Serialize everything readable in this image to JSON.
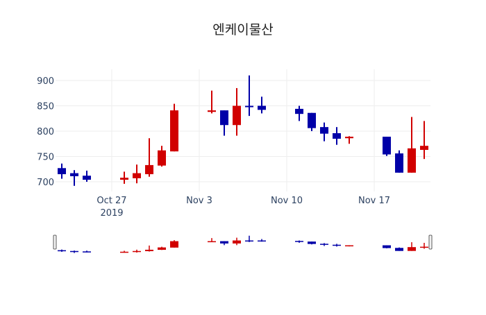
{
  "chart_data": {
    "type": "candlestick",
    "title": "엔케이물산",
    "increasing_color": "#d10000",
    "decreasing_color": "#0000a8",
    "ylim": [
      680,
      925
    ],
    "yticks": [
      700,
      750,
      800,
      850,
      900
    ],
    "xticks": [
      {
        "date": "2019-10-27",
        "label": "Oct 27",
        "sub": "2019"
      },
      {
        "date": "2019-11-03",
        "label": "Nov 3"
      },
      {
        "date": "2019-11-10",
        "label": "Nov 10"
      },
      {
        "date": "2019-11-17",
        "label": "Nov 17"
      }
    ],
    "x_start": "2019-10-22",
    "x_end": "2019-11-21",
    "candles": [
      {
        "date": "2019-10-23",
        "open": 727,
        "high": 736,
        "low": 706,
        "close": 715
      },
      {
        "date": "2019-10-24",
        "open": 717,
        "high": 723,
        "low": 692,
        "close": 711
      },
      {
        "date": "2019-10-25",
        "open": 712,
        "high": 722,
        "low": 700,
        "close": 704
      },
      {
        "date": "2019-10-28",
        "open": 704,
        "high": 720,
        "low": 696,
        "close": 708
      },
      {
        "date": "2019-10-29",
        "open": 707,
        "high": 734,
        "low": 697,
        "close": 717
      },
      {
        "date": "2019-10-30",
        "open": 715,
        "high": 786,
        "low": 710,
        "close": 733
      },
      {
        "date": "2019-10-31",
        "open": 732,
        "high": 771,
        "low": 730,
        "close": 762
      },
      {
        "date": "2019-11-01",
        "open": 760,
        "high": 854,
        "low": 760,
        "close": 841
      },
      {
        "date": "2019-11-04",
        "open": 838,
        "high": 880,
        "low": 835,
        "close": 841
      },
      {
        "date": "2019-11-05",
        "open": 841,
        "high": 841,
        "low": 791,
        "close": 812
      },
      {
        "date": "2019-11-06",
        "open": 812,
        "high": 885,
        "low": 791,
        "close": 850
      },
      {
        "date": "2019-11-07",
        "open": 850,
        "high": 910,
        "low": 830,
        "close": 848
      },
      {
        "date": "2019-11-08",
        "open": 850,
        "high": 868,
        "low": 835,
        "close": 842
      },
      {
        "date": "2019-11-11",
        "open": 844,
        "high": 850,
        "low": 820,
        "close": 834
      },
      {
        "date": "2019-11-12",
        "open": 836,
        "high": 836,
        "low": 800,
        "close": 806
      },
      {
        "date": "2019-11-13",
        "open": 808,
        "high": 817,
        "low": 780,
        "close": 795
      },
      {
        "date": "2019-11-14",
        "open": 796,
        "high": 808,
        "low": 773,
        "close": 785
      },
      {
        "date": "2019-11-15",
        "open": 786,
        "high": 790,
        "low": 775,
        "close": 789
      },
      {
        "date": "2019-11-18",
        "open": 789,
        "high": 789,
        "low": 751,
        "close": 754
      },
      {
        "date": "2019-11-19",
        "open": 756,
        "high": 762,
        "low": 718,
        "close": 718
      },
      {
        "date": "2019-11-20",
        "open": 718,
        "high": 828,
        "low": 718,
        "close": 766
      },
      {
        "date": "2019-11-21",
        "open": 763,
        "high": 820,
        "low": 745,
        "close": 771
      }
    ]
  }
}
